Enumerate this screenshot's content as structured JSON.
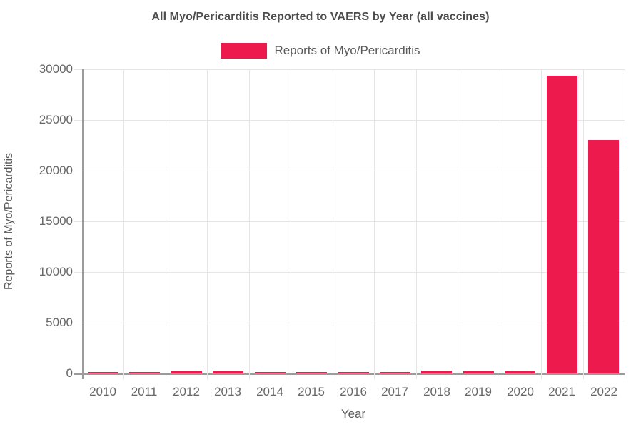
{
  "title": "All Myo/Pericarditis Reported to VAERS by Year (all vaccines)",
  "legend": {
    "label": "Reports of Myo/Pericarditis",
    "swatch_color": "#ed1a4d"
  },
  "axes": {
    "x_title": "Year",
    "y_title": "Reports of Myo/Pericarditis"
  },
  "chart_data": {
    "type": "bar",
    "title": "All Myo/Pericarditis Reported to VAERS by Year (all vaccines)",
    "xlabel": "Year",
    "ylabel": "Reports of Myo/Pericarditis",
    "categories": [
      "2010",
      "2011",
      "2012",
      "2013",
      "2014",
      "2015",
      "2016",
      "2017",
      "2018",
      "2019",
      "2020",
      "2021",
      "2022"
    ],
    "series": [
      {
        "name": "Reports of Myo/Pericarditis",
        "color": "#ed1a4d",
        "values": [
          160,
          150,
          250,
          260,
          150,
          130,
          140,
          120,
          280,
          180,
          190,
          29400,
          23000
        ]
      }
    ],
    "ylim": [
      0,
      30000
    ],
    "yticks": [
      0,
      5000,
      10000,
      15000,
      20000,
      25000,
      30000
    ],
    "grid": true,
    "legend_position": "top"
  },
  "colors": {
    "bar": "#ed1a4d",
    "grid_light": "#e5e5e5",
    "axis_line": "#9b9b9b",
    "title_text": "#4c4c4c",
    "tick_text": "#666666",
    "axis_title_text": "#595959",
    "background": "#ffffff"
  }
}
